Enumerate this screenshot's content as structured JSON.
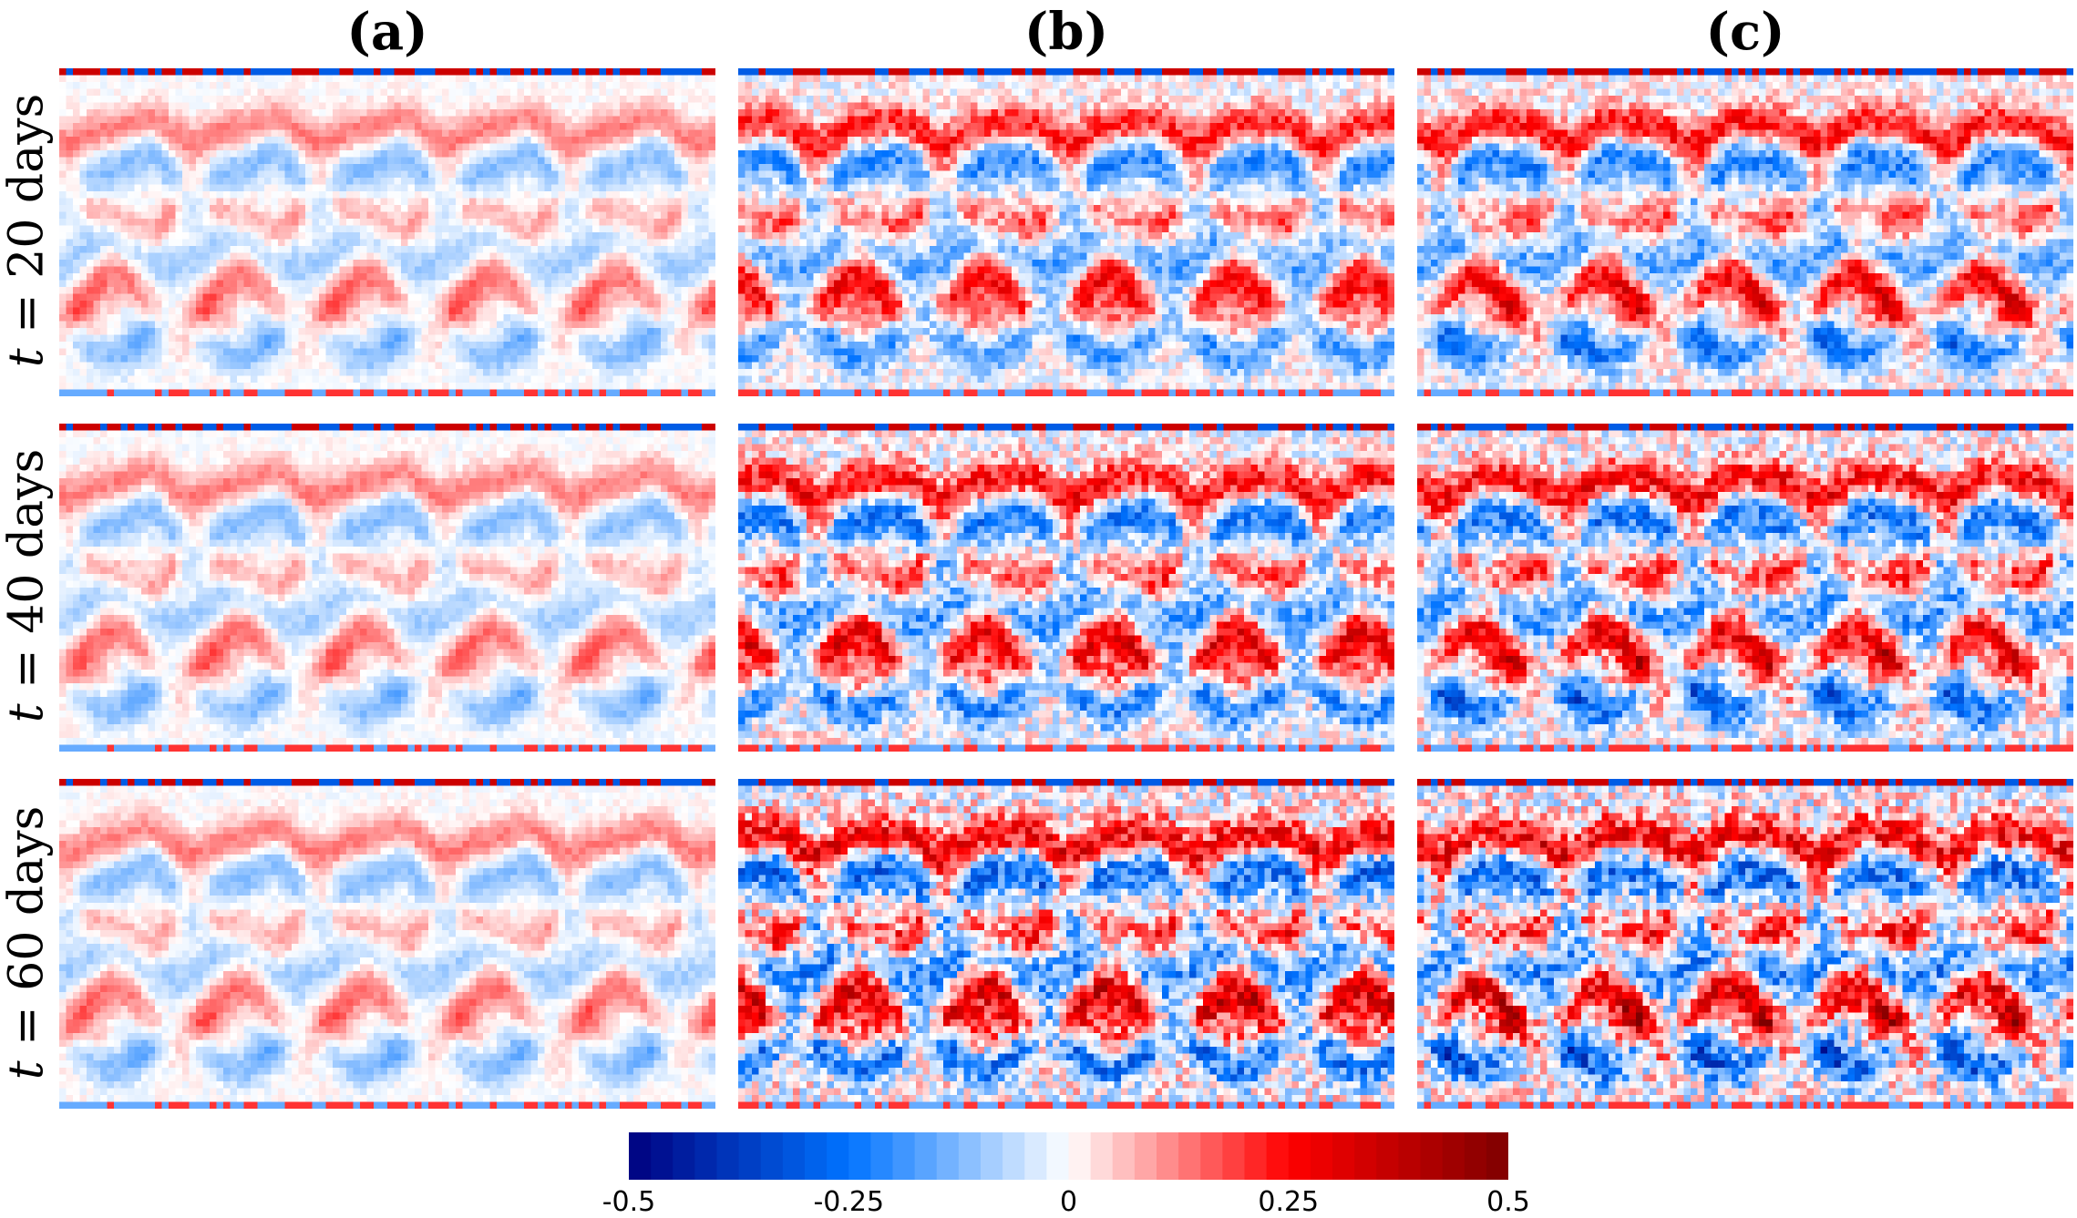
{
  "chart_data": {
    "type": "heatmap",
    "columns": [
      "(a)",
      "(b)",
      "(c)"
    ],
    "rows": [
      {
        "prefix": "t",
        "rest": "= 20 days"
      },
      {
        "prefix": "t",
        "rest": "= 40 days"
      },
      {
        "prefix": "t",
        "rest": "= 60 days"
      }
    ],
    "colorbar": {
      "range": [
        -0.5,
        0.5
      ],
      "ticks": [
        "-0.5",
        "-0.25",
        "0",
        "0.25",
        "0.5"
      ],
      "colors": [
        "#00007f",
        "#0073ff",
        "#ffffff",
        "#ff0000",
        "#7f0000"
      ]
    },
    "panels": [
      {
        "col": 0,
        "row": 0,
        "noise": 0.15,
        "amplitude": 0.45
      },
      {
        "col": 1,
        "row": 0,
        "noise": 0.45,
        "amplitude": 0.8
      },
      {
        "col": 2,
        "row": 0,
        "noise": 0.5,
        "amplitude": 0.85
      },
      {
        "col": 0,
        "row": 1,
        "noise": 0.15,
        "amplitude": 0.45
      },
      {
        "col": 1,
        "row": 1,
        "noise": 0.6,
        "amplitude": 0.9
      },
      {
        "col": 2,
        "row": 1,
        "noise": 0.65,
        "amplitude": 0.92
      },
      {
        "col": 0,
        "row": 2,
        "noise": 0.15,
        "amplitude": 0.45
      },
      {
        "col": 1,
        "row": 2,
        "noise": 0.75,
        "amplitude": 1.0
      },
      {
        "col": 2,
        "row": 2,
        "noise": 0.8,
        "amplitude": 1.0
      }
    ]
  }
}
